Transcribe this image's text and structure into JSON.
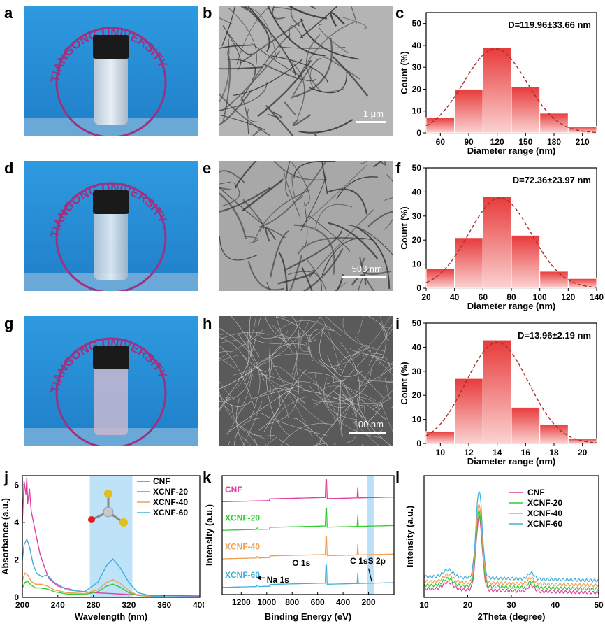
{
  "panel_labels": {
    "a": "a",
    "b": "b",
    "c": "c",
    "d": "d",
    "e": "e",
    "f": "f",
    "g": "g",
    "h": "h",
    "i": "i",
    "j": "j",
    "k": "k",
    "l": "l"
  },
  "photo_text": "TIANGONG UNIVERSITY",
  "colors": {
    "bar": "#f08080",
    "bar_edge": "#ffffff",
    "fit": "#a0302a",
    "photo_bg": "#2a8fd6",
    "cnf": "#e040a0",
    "xcnf20": "#33cc33",
    "xcnf40": "#f0a050",
    "xcnf60": "#40b0d8",
    "highlight": "#a8d8f4"
  },
  "tem": [
    {
      "scale": "1 μm",
      "tone": "#b4b4b4"
    },
    {
      "scale": "500 nm",
      "tone": "#a8a8a8"
    },
    {
      "scale": "100 nm",
      "tone": "#5a5a5a"
    }
  ],
  "chart_data": [
    {
      "type": "bar",
      "id": "c",
      "annotation": "D=119.96±33.66  nm",
      "xlabel": "Diameter range (nm)",
      "ylabel": "Count (%)",
      "categories": [
        60,
        90,
        120,
        150,
        180,
        210
      ],
      "values": [
        7,
        20,
        39,
        21,
        9,
        3
      ],
      "xlim": [
        45,
        225
      ],
      "ylim": [
        0,
        55
      ],
      "xticks": [
        60,
        90,
        120,
        150,
        180,
        210
      ],
      "yticks": [
        0,
        10,
        20,
        30,
        40,
        50
      ],
      "fit": {
        "mean": 118,
        "sd": 33,
        "peak": 38.5
      }
    },
    {
      "type": "bar",
      "id": "f",
      "annotation": "D=72.36±23.97  nm",
      "xlabel": "Diameter range (nm)",
      "ylabel": "Count (%)",
      "categories": [
        30,
        50,
        70,
        90,
        110,
        130
      ],
      "values": [
        8,
        21,
        38,
        22,
        7,
        4
      ],
      "xlim": [
        20,
        140
      ],
      "ylim": [
        0,
        50
      ],
      "xticks": [
        20,
        40,
        60,
        80,
        100,
        120,
        140
      ],
      "yticks": [
        0,
        10,
        20,
        30,
        40,
        50
      ],
      "fit": {
        "mean": 72,
        "sd": 22,
        "peak": 37.5
      }
    },
    {
      "type": "bar",
      "id": "i",
      "annotation": "D=13.96±2.19  nm",
      "xlabel": "Diameter range (nm)",
      "ylabel": "Count (%)",
      "categories": [
        10,
        12,
        14,
        16,
        18,
        20
      ],
      "values": [
        5,
        27,
        43,
        15,
        8,
        2
      ],
      "xlim": [
        9,
        21
      ],
      "ylim": [
        0,
        50
      ],
      "xticks": [
        10,
        12,
        14,
        16,
        18,
        20
      ],
      "yticks": [
        0,
        10,
        20,
        30,
        40,
        50
      ],
      "fit": {
        "mean": 14,
        "sd": 2.2,
        "peak": 42
      }
    },
    {
      "type": "line",
      "id": "j",
      "xlabel": "Wavelength (nm)",
      "ylabel": "Absorbance (a.u.)",
      "xlim": [
        200,
        400
      ],
      "ylim": [
        0,
        6.5
      ],
      "xticks": [
        200,
        240,
        280,
        320,
        360,
        400
      ],
      "yticks": [
        0,
        2,
        4,
        6
      ],
      "highlight": [
        276,
        324
      ],
      "series": [
        {
          "name": "CNF",
          "color": "#e040a0",
          "x": [
            200,
            202,
            204,
            205,
            206,
            208,
            210,
            213,
            216,
            220,
            225,
            230,
            240,
            260,
            280,
            300,
            320,
            340,
            360,
            400
          ],
          "y": [
            4.0,
            6.2,
            5.5,
            6.4,
            5.0,
            5.8,
            4.6,
            3.9,
            3.2,
            2.3,
            1.6,
            1.0,
            0.6,
            0.35,
            0.25,
            0.2,
            0.15,
            0.12,
            0.1,
            0.08
          ]
        },
        {
          "name": "XCNF-20",
          "color": "#33cc33",
          "x": [
            200,
            203,
            206,
            210,
            215,
            220,
            228,
            236,
            250,
            270,
            285,
            295,
            302,
            310,
            320,
            330,
            345,
            360,
            400
          ],
          "y": [
            0.5,
            0.8,
            0.85,
            0.65,
            0.5,
            0.5,
            0.45,
            0.3,
            0.18,
            0.15,
            0.3,
            0.6,
            0.7,
            0.55,
            0.25,
            0.1,
            0.05,
            0.03,
            0.02
          ]
        },
        {
          "name": "XCNF-40",
          "color": "#f0a050",
          "x": [
            200,
            203,
            206,
            210,
            215,
            222,
            228,
            236,
            250,
            270,
            285,
            295,
            302,
            310,
            320,
            330,
            345,
            360,
            400
          ],
          "y": [
            0.9,
            1.3,
            1.2,
            0.85,
            0.7,
            0.7,
            0.6,
            0.4,
            0.25,
            0.2,
            0.4,
            0.8,
            0.95,
            0.75,
            0.35,
            0.12,
            0.05,
            0.03,
            0.02
          ]
        },
        {
          "name": "XCNF-60",
          "color": "#40b0d8",
          "x": [
            200,
            202,
            205,
            208,
            212,
            216,
            222,
            228,
            236,
            250,
            270,
            285,
            295,
            302,
            310,
            320,
            330,
            345,
            360,
            400
          ],
          "y": [
            2.0,
            2.8,
            3.1,
            2.7,
            1.8,
            1.3,
            1.1,
            1.2,
            0.8,
            0.4,
            0.3,
            0.8,
            1.7,
            2.05,
            1.6,
            0.8,
            0.25,
            0.08,
            0.04,
            0.03
          ]
        }
      ]
    },
    {
      "type": "line",
      "id": "k",
      "xlabel": "Binding Energy (eV)",
      "ylabel": "Intensity (a.u.)",
      "xlim": [
        1350,
        0
      ],
      "ylim": [
        0,
        10
      ],
      "xticks": [
        1200,
        1000,
        800,
        600,
        400,
        200
      ],
      "highlight": [
        160,
        210
      ],
      "labels": {
        "cnf": "CNF",
        "x20": "XCNF-20",
        "x40": "XCNF-40",
        "x60": "XCNF-60",
        "na": "Na 1s",
        "o": "O 1s",
        "c": "C 1s",
        "s": "S 2p"
      },
      "series": [
        {
          "name": "CNF",
          "color": "#e040a0",
          "offset": 7.6
        },
        {
          "name": "XCNF-20",
          "color": "#33cc33",
          "offset": 5.2
        },
        {
          "name": "XCNF-40",
          "color": "#f0a050",
          "offset": 2.8
        },
        {
          "name": "XCNF-60",
          "color": "#40b0d8",
          "offset": 0.4
        }
      ]
    },
    {
      "type": "line",
      "id": "l",
      "xlabel": "2Theta (degree)",
      "ylabel": "Intensity (a.u.)",
      "xlim": [
        10,
        50
      ],
      "ylim": [
        0,
        10
      ],
      "xticks": [
        10,
        20,
        30,
        40,
        50
      ],
      "series": [
        {
          "name": "CNF",
          "color": "#e040a0",
          "peak": 6.7,
          "base": 0.7
        },
        {
          "name": "XCNF-20",
          "color": "#33cc33",
          "peak": 7.2,
          "base": 1.0
        },
        {
          "name": "XCNF-40",
          "color": "#f0a050",
          "peak": 7.8,
          "base": 1.3
        },
        {
          "name": "XCNF-60",
          "color": "#40b0d8",
          "peak": 8.9,
          "base": 1.7
        }
      ]
    }
  ]
}
